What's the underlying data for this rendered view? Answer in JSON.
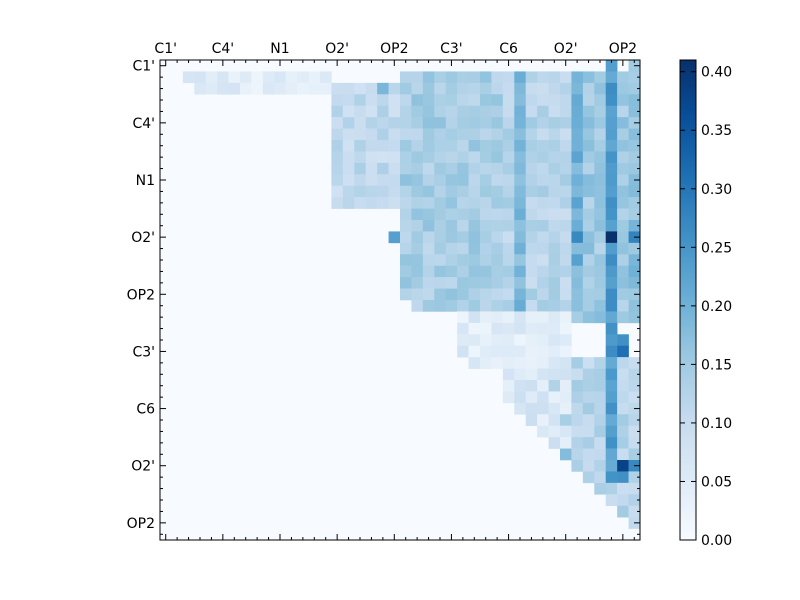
{
  "chart_data": {
    "type": "heatmap",
    "title": "",
    "xlabel": "",
    "ylabel": "",
    "n": 42,
    "tick_labels": [
      "C1'",
      "C4'",
      "N1",
      "O2'",
      "OP2",
      "C3'",
      "C6",
      "O2'",
      "OP2"
    ],
    "x_tick_labels": [
      "C1'",
      "C4'",
      "N1",
      "O2'",
      "OP2",
      "C3'",
      "C6",
      "O2'",
      "OP2"
    ],
    "y_tick_labels": [
      "C1'",
      "C4'",
      "N1",
      "O2'",
      "OP2",
      "C3'",
      "C6",
      "O2'",
      "OP2"
    ],
    "tick_positions": [
      0,
      5,
      10,
      15,
      20,
      25,
      30,
      35,
      40
    ],
    "x_tick_positions": [
      0,
      5,
      10,
      15,
      20,
      25,
      30,
      35,
      40
    ],
    "y_tick_positions": [
      0,
      5,
      10,
      15,
      20,
      25,
      30,
      35,
      40
    ],
    "colorbar": {
      "min": 0.0,
      "max": 0.41,
      "ticks": [
        0.0,
        0.05,
        0.1,
        0.15,
        0.2,
        0.25,
        0.3,
        0.35,
        0.4
      ],
      "tick_labels": [
        "0.00",
        "0.05",
        "0.10",
        "0.15",
        "0.20",
        "0.25",
        "0.30",
        "0.35",
        "0.40"
      ],
      "colormap": "Blues",
      "colors": [
        "#f7fbff",
        "#deebf7",
        "#c6dbef",
        "#9ecae1",
        "#6baed6",
        "#4292c6",
        "#2171b5",
        "#08519c",
        "#08306b"
      ]
    },
    "triangle": "upper",
    "regions": [
      {
        "rows": [
          1,
          2
        ],
        "cols": [
          2,
          14
        ],
        "value": 0.05
      },
      {
        "rows": [
          2,
          12
        ],
        "cols": [
          15,
          20
        ],
        "value": 0.11
      },
      {
        "rows": [
          1,
          21
        ],
        "cols": [
          21,
          29
        ],
        "value": 0.14
      },
      {
        "rows": [
          1,
          21
        ],
        "cols": [
          30,
          35
        ],
        "value": 0.12
      },
      {
        "rows": [
          1,
          22
        ],
        "cols": [
          36,
          41
        ],
        "value": 0.15
      },
      {
        "rows": [
          22,
          26
        ],
        "cols": [
          26,
          35
        ],
        "value": 0.05
      },
      {
        "rows": [
          26,
          41
        ],
        "cols": [
          36,
          41
        ],
        "value": 0.12
      },
      {
        "rows": [
          26,
          36
        ],
        "cols": [
          30,
          35
        ],
        "value": 0.06
      }
    ],
    "columns": [
      {
        "col": 31,
        "rows": [
          1,
          21
        ],
        "value": 0.18
      },
      {
        "col": 36,
        "rows": [
          1,
          21
        ],
        "value": 0.2
      },
      {
        "col": 39,
        "rows": [
          0,
          36
        ],
        "value": 0.24
      },
      {
        "col": 41,
        "rows": [
          0,
          21
        ],
        "value": 0.17
      }
    ],
    "hotspots": [
      {
        "row": 15,
        "col": 39,
        "value": 0.41
      },
      {
        "row": 15,
        "col": 41,
        "value": 0.28
      },
      {
        "row": 15,
        "col": 36,
        "value": 0.27
      },
      {
        "row": 15,
        "col": 20,
        "value": 0.23
      },
      {
        "row": 2,
        "col": 19,
        "value": 0.19
      },
      {
        "row": 24,
        "col": 40,
        "value": 0.26
      },
      {
        "row": 25,
        "col": 40,
        "value": 0.31
      },
      {
        "row": 35,
        "col": 40,
        "value": 0.38
      },
      {
        "row": 35,
        "col": 41,
        "value": 0.27
      },
      {
        "row": 36,
        "col": 40,
        "value": 0.26
      },
      {
        "row": 34,
        "col": 35,
        "value": 0.18
      },
      {
        "row": 31,
        "col": 35,
        "value": 0.14
      },
      {
        "row": 28,
        "col": 34,
        "value": 0.13
      }
    ]
  }
}
